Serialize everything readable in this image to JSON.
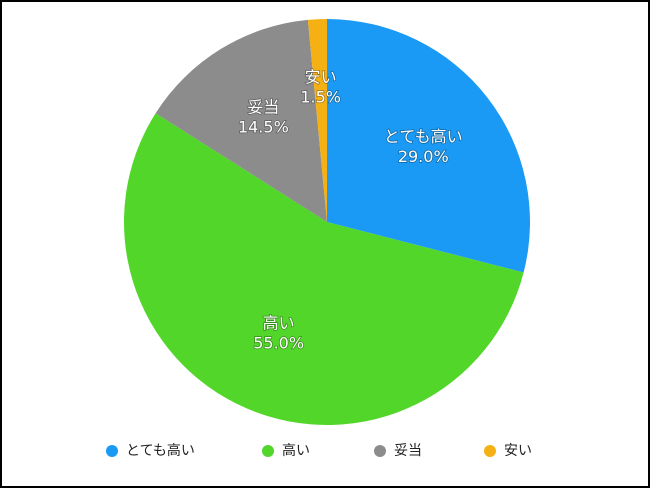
{
  "chart_data": {
    "type": "pie",
    "categories": [
      "とても高い",
      "高い",
      "妥当",
      "安い"
    ],
    "values": [
      29.0,
      55.0,
      14.5,
      1.5
    ],
    "value_labels": [
      "29.0%",
      "55.0%",
      "14.5%",
      "1.5%"
    ],
    "colors": [
      "#1a9af5",
      "#52d62a",
      "#8c8c8c",
      "#f5b014"
    ],
    "legend": "bottom"
  }
}
